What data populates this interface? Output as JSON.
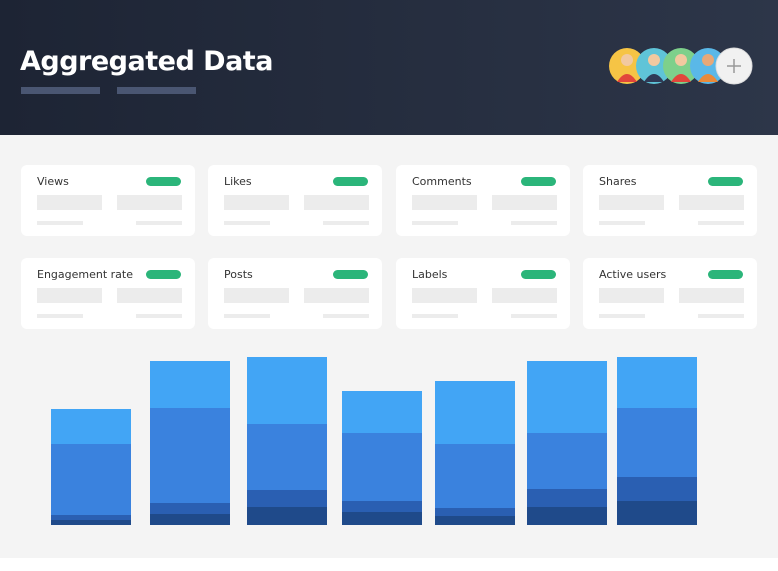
{
  "header": {
    "title": "Aggregated Data"
  },
  "cards": [
    {
      "label": "Views"
    },
    {
      "label": "Likes"
    },
    {
      "label": "Comments"
    },
    {
      "label": "Shares"
    },
    {
      "label": "Engagement rate"
    },
    {
      "label": "Posts"
    },
    {
      "label": "Labels"
    },
    {
      "label": "Active users"
    }
  ],
  "chart_data": {
    "type": "stacked-bar",
    "ylim": [
      0,
      175
    ],
    "series": [
      {
        "color": "#1f4a8a",
        "values": [
          5,
          11,
          18,
          13,
          9,
          18,
          24
        ]
      },
      {
        "color": "#2a5fb2",
        "values": [
          5,
          11,
          17,
          11,
          8,
          18,
          24
        ]
      },
      {
        "color": "#3a82de",
        "values": [
          71,
          95,
          66,
          68,
          64,
          56,
          69
        ]
      },
      {
        "color": "#42a5f5",
        "values": [
          35,
          47,
          67,
          42,
          63,
          72,
          51
        ]
      }
    ]
  }
}
